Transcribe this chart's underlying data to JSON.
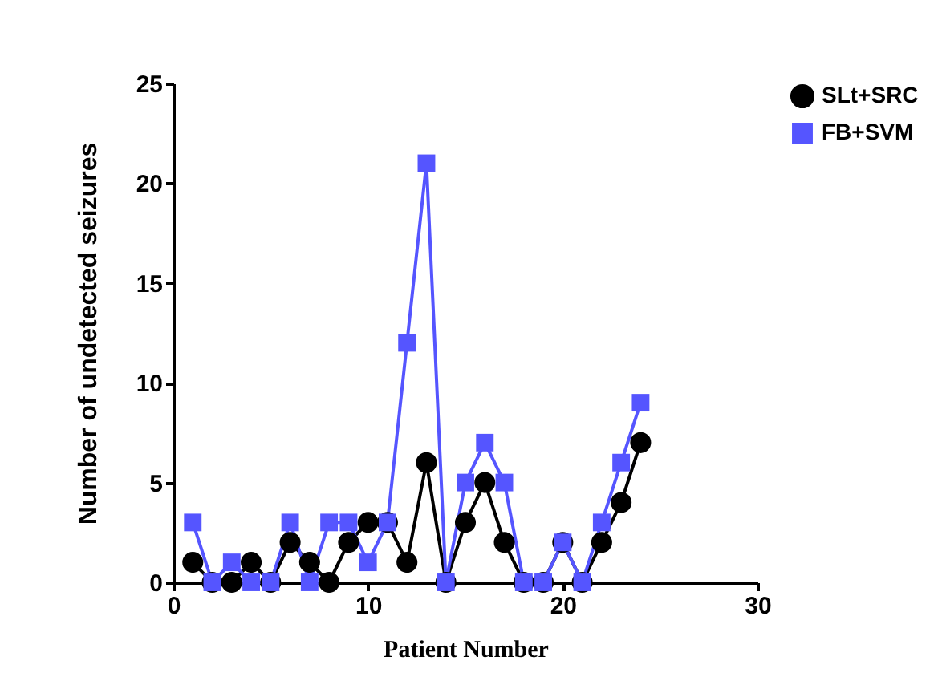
{
  "chart_data": {
    "type": "line",
    "xlabel": "Patient Number",
    "ylabel": "Number of undetected seizures",
    "x": [
      1,
      2,
      3,
      4,
      5,
      6,
      7,
      8,
      9,
      10,
      11,
      12,
      13,
      14,
      15,
      16,
      17,
      18,
      19,
      20,
      21,
      22,
      23,
      24
    ],
    "series": [
      {
        "name": "SLt+SRC",
        "color": "#000000",
        "marker": "circle",
        "values": [
          1,
          0,
          0,
          1,
          0,
          2,
          1,
          0,
          2,
          3,
          3,
          1,
          6,
          0,
          3,
          5,
          2,
          0,
          0,
          2,
          0,
          2,
          4,
          7
        ]
      },
      {
        "name": "FB+SVM",
        "color": "#5555ff",
        "marker": "square",
        "values": [
          3,
          0,
          1,
          0,
          0,
          3,
          0,
          3,
          3,
          1,
          3,
          12,
          21,
          0,
          5,
          7,
          5,
          0,
          0,
          2,
          0,
          3,
          6,
          9
        ]
      }
    ],
    "xlim": [
      0,
      30
    ],
    "xticks": [
      0,
      10,
      20,
      30
    ],
    "ylim": [
      0,
      25
    ],
    "yticks": [
      0,
      5,
      10,
      15,
      20,
      25
    ],
    "grid": false,
    "legend": "top right",
    "line_style": "solid"
  }
}
